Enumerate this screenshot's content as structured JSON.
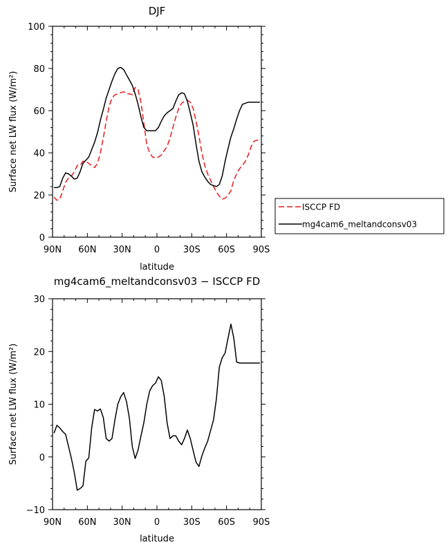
{
  "chart_data": [
    {
      "type": "line",
      "title": "DJF",
      "xlabel": "latitude",
      "ylabel": "Surface net LW flux (W/m²)",
      "xlim": [
        90,
        -90
      ],
      "ylim": [
        0,
        100
      ],
      "xtick_values": [
        90,
        60,
        30,
        0,
        -30,
        -60,
        -90
      ],
      "xtick_labels": [
        "90N",
        "60N",
        "30N",
        "0",
        "30S",
        "60S",
        "90S"
      ],
      "ytick_values": [
        0,
        20,
        40,
        60,
        80,
        100
      ],
      "ytick_labels": [
        "0",
        "20",
        "40",
        "60",
        "80",
        "100"
      ],
      "legend_position": "right",
      "series": [
        {
          "name": "ISCCP FD",
          "color": "#e8191b",
          "dash": "dashed",
          "x": [
            88.75,
            86.25,
            83.75,
            81.25,
            78.75,
            76.25,
            73.75,
            71.25,
            68.75,
            66.25,
            63.75,
            61.25,
            58.75,
            56.25,
            53.75,
            51.25,
            48.75,
            46.25,
            43.75,
            41.25,
            38.75,
            36.25,
            33.75,
            31.25,
            28.75,
            26.25,
            23.75,
            21.25,
            18.75,
            16.25,
            13.75,
            11.25,
            8.75,
            6.25,
            3.75,
            1.25,
            -1.25,
            -3.75,
            -6.25,
            -8.75,
            -11.25,
            -13.75,
            -16.25,
            -18.75,
            -21.25,
            -23.75,
            -26.25,
            -28.75,
            -31.25,
            -33.75,
            -36.25,
            -38.75,
            -41.25,
            -43.75,
            -46.25,
            -48.75,
            -51.25,
            -53.75,
            -56.25,
            -58.75,
            -61.25,
            -63.75,
            -66.25,
            -68.75,
            -71.25,
            -73.75,
            -76.25,
            -78.75,
            -81.25,
            -83.75,
            -86.25,
            -88.75
          ],
          "y": [
            19,
            17.5,
            18,
            22,
            26,
            28,
            29,
            31,
            34,
            34,
            36,
            36,
            35,
            34,
            33,
            35,
            40,
            47,
            55,
            62,
            66,
            67.5,
            68,
            68.5,
            69,
            68,
            68,
            67.5,
            71,
            70,
            64,
            54,
            44,
            40,
            38,
            37.5,
            38,
            39,
            41,
            43,
            47,
            52,
            57,
            61,
            63.5,
            64.5,
            65,
            64,
            61,
            55,
            48,
            40,
            34,
            30,
            27,
            24,
            21.5,
            19.5,
            18,
            18.5,
            20,
            22,
            27,
            30,
            32.5,
            34,
            36,
            39,
            43,
            45.5,
            46,
            46
          ]
        },
        {
          "name": "mg4cam6_meltandconsv03",
          "color": "#000000",
          "dash": "solid",
          "x": [
            88.75,
            86.25,
            83.75,
            81.25,
            78.75,
            76.25,
            73.75,
            71.25,
            68.75,
            66.25,
            63.75,
            61.25,
            58.75,
            56.25,
            53.75,
            51.25,
            48.75,
            46.25,
            43.75,
            41.25,
            38.75,
            36.25,
            33.75,
            31.25,
            28.75,
            26.25,
            23.75,
            21.25,
            18.75,
            16.25,
            13.75,
            11.25,
            8.75,
            6.25,
            3.75,
            1.25,
            -1.25,
            -3.75,
            -6.25,
            -8.75,
            -11.25,
            -13.75,
            -16.25,
            -18.75,
            -21.25,
            -23.75,
            -26.25,
            -28.75,
            -31.25,
            -33.75,
            -36.25,
            -38.75,
            -41.25,
            -43.75,
            -46.25,
            -48.75,
            -51.25,
            -53.75,
            -56.25,
            -58.75,
            -61.25,
            -63.75,
            -66.25,
            -68.75,
            -71.25,
            -73.75,
            -76.25,
            -78.75,
            -81.25,
            -83.75,
            -86.25,
            -88.75
          ],
          "y": [
            23.5,
            23.5,
            24,
            28,
            30.5,
            30,
            29,
            27.5,
            28,
            31,
            35,
            36.5,
            38,
            41.5,
            45,
            49.5,
            55.5,
            60.5,
            66,
            70,
            74,
            77.5,
            80,
            80.5,
            79.5,
            77,
            74.5,
            72,
            68,
            63,
            57,
            52,
            50.5,
            50.5,
            50.5,
            50.5,
            52,
            55,
            57.5,
            59,
            60,
            61,
            64.5,
            67.5,
            68.5,
            68,
            64.5,
            59,
            53,
            44,
            36,
            31,
            28.5,
            26.5,
            25,
            24.5,
            24,
            25,
            29,
            36,
            42,
            47.5,
            51.5,
            56,
            60,
            63,
            63.5,
            64,
            64,
            64,
            64,
            64
          ]
        }
      ]
    },
    {
      "type": "line",
      "title": "mg4cam6_meltandconsv03 − ISCCP FD",
      "xlabel": "latitude",
      "ylabel": "Surface net LW flux (W/m²)",
      "xlim": [
        90,
        -90
      ],
      "ylim": [
        -10,
        30
      ],
      "xtick_values": [
        90,
        60,
        30,
        0,
        -30,
        -60,
        -90
      ],
      "xtick_labels": [
        "90N",
        "60N",
        "30N",
        "0",
        "30S",
        "60S",
        "90S"
      ],
      "ytick_values": [
        -10,
        0,
        10,
        20,
        30
      ],
      "ytick_labels": [
        "−10",
        "0",
        "10",
        "20",
        "30"
      ],
      "series": [
        {
          "color": "#000000",
          "dash": "solid",
          "x": [
            88.75,
            86.25,
            83.75,
            81.25,
            78.75,
            76.25,
            73.75,
            71.25,
            68.75,
            66.25,
            63.75,
            61.25,
            58.75,
            56.25,
            53.75,
            51.25,
            48.75,
            46.25,
            43.75,
            41.25,
            38.75,
            36.25,
            33.75,
            31.25,
            28.75,
            26.25,
            23.75,
            21.25,
            18.75,
            16.25,
            13.75,
            11.25,
            8.75,
            6.25,
            3.75,
            1.25,
            -1.25,
            -3.75,
            -6.25,
            -8.75,
            -11.25,
            -13.75,
            -16.25,
            -18.75,
            -21.25,
            -23.75,
            -26.25,
            -28.75,
            -31.25,
            -33.75,
            -36.25,
            -38.75,
            -41.25,
            -43.75,
            -46.25,
            -48.75,
            -51.25,
            -53.75,
            -56.25,
            -58.75,
            -61.25,
            -63.75,
            -66.25,
            -68.75,
            -71.25,
            -73.75,
            -76.25,
            -78.75,
            -81.25,
            -83.75,
            -86.25,
            -88.75
          ],
          "y": [
            4.5,
            6,
            5.5,
            4.8,
            4.3,
            2,
            -0.3,
            -3,
            -6.3,
            -6,
            -5.5,
            -0.8,
            -0.2,
            5.5,
            9,
            8.7,
            9.1,
            7.5,
            3.5,
            3,
            3.5,
            7,
            10,
            11.4,
            12.2,
            10.5,
            7.3,
            2,
            -0.3,
            1.3,
            4,
            6.5,
            10,
            12.5,
            13.5,
            14,
            15.2,
            14.5,
            11.5,
            6.5,
            3.5,
            4,
            4,
            3,
            2.3,
            3.5,
            5.1,
            3.5,
            1.2,
            -1,
            -1.8,
            0.2,
            1.7,
            3,
            5,
            7,
            11,
            17,
            18.8,
            19.7,
            22.5,
            25.2,
            22.5,
            18,
            17.8,
            17.8,
            17.8,
            17.8,
            17.8,
            17.8,
            17.8,
            17.8
          ]
        }
      ]
    }
  ]
}
